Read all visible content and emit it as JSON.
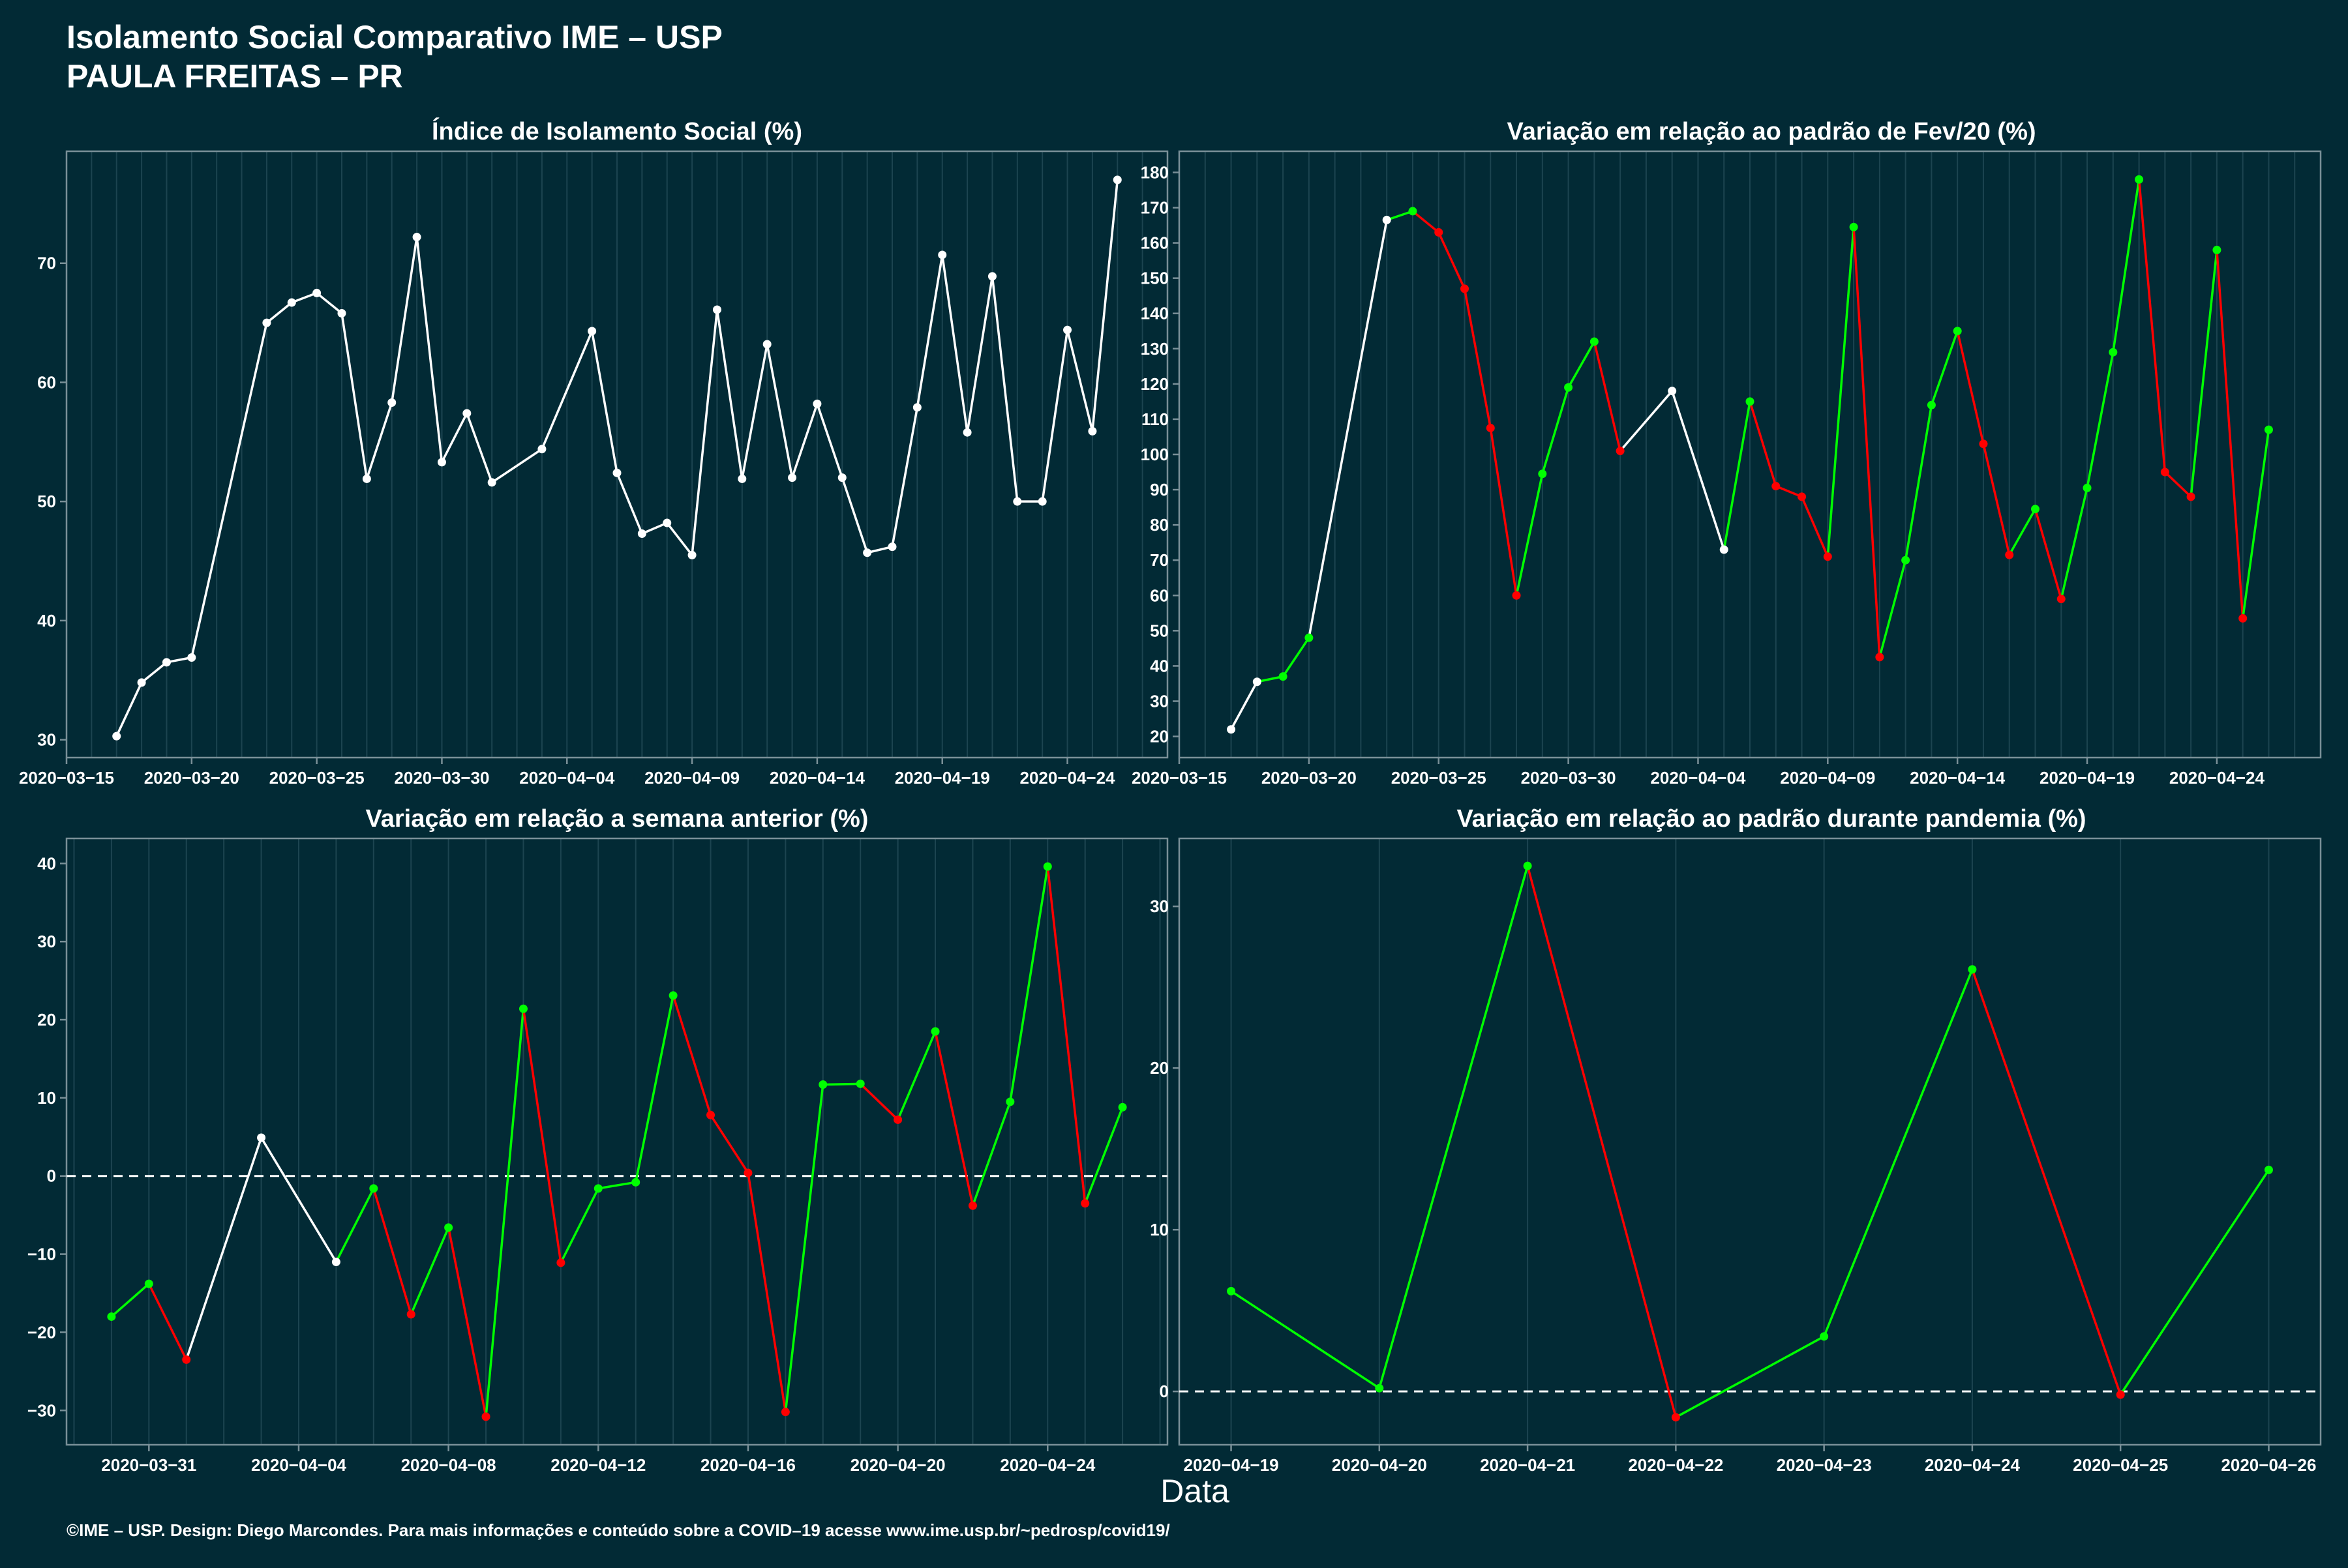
{
  "header": {
    "title_line1": "Isolamento Social Comparativo IME – USP",
    "title_line2": "PAULA FREITAS – PR"
  },
  "footer": {
    "xlabel": "Data",
    "credit": "©IME – USP. Design: Diego Marcondes. Para mais informações e conteúdo sobre a COVID–19 acesse www.ime.usp.br/~pedrosp/covid19/"
  },
  "colors": {
    "background": "#022a35",
    "panel_border": "#7a9098",
    "grid": "#1c4450",
    "text": "#ffffff",
    "up": "#00ff00",
    "down": "#ff0000",
    "neutral": "#ffffff"
  },
  "chart_data": [
    {
      "id": "p1",
      "type": "line",
      "title": "Índice de Isolamento Social (%)",
      "x": [
        "2020-03-17",
        "2020-03-18",
        "2020-03-19",
        "2020-03-20",
        "2020-03-23",
        "2020-03-24",
        "2020-03-25",
        "2020-03-26",
        "2020-03-27",
        "2020-03-28",
        "2020-03-29",
        "2020-03-30",
        "2020-03-31",
        "2020-04-01",
        "2020-04-03",
        "2020-04-05",
        "2020-04-06",
        "2020-04-07",
        "2020-04-08",
        "2020-04-09",
        "2020-04-10",
        "2020-04-11",
        "2020-04-12",
        "2020-04-13",
        "2020-04-14",
        "2020-04-15",
        "2020-04-16",
        "2020-04-17",
        "2020-04-18",
        "2020-04-19",
        "2020-04-20",
        "2020-04-21",
        "2020-04-22",
        "2020-04-23",
        "2020-04-24",
        "2020-04-25",
        "2020-04-26"
      ],
      "y": [
        30.3,
        34.8,
        36.5,
        36.9,
        65.0,
        66.7,
        67.5,
        65.8,
        51.9,
        58.3,
        72.2,
        53.3,
        57.4,
        51.6,
        54.4,
        64.3,
        52.4,
        47.3,
        48.2,
        45.5,
        66.1,
        51.9,
        63.2,
        52.0,
        58.2,
        52.0,
        45.7,
        46.2,
        57.9,
        70.7,
        55.8,
        68.9,
        50.0,
        50.0,
        64.4,
        55.9,
        77.0
      ],
      "segment_colors": [
        "neutral"
      ],
      "xticks": [
        "2020-03-15",
        "2020-03-20",
        "2020-03-25",
        "2020-03-30",
        "2020-04-04",
        "2020-04-09",
        "2020-04-14",
        "2020-04-19",
        "2020-04-24"
      ],
      "xlim": [
        "2020-03-15",
        "2020-04-28"
      ],
      "yticks": [
        30,
        40,
        50,
        60,
        70
      ],
      "ylim": [
        28.5,
        79.4
      ],
      "grid": true,
      "reference_line": null
    },
    {
      "id": "p2",
      "type": "line",
      "title": "Variação em relação ao padrão de Fev/20 (%)",
      "x": [
        "2020-03-17",
        "2020-03-18",
        "2020-03-19",
        "2020-03-20",
        "2020-03-23",
        "2020-03-24",
        "2020-03-25",
        "2020-03-26",
        "2020-03-27",
        "2020-03-28",
        "2020-03-29",
        "2020-03-30",
        "2020-03-31",
        "2020-04-01",
        "2020-04-03",
        "2020-04-05",
        "2020-04-06",
        "2020-04-07",
        "2020-04-08",
        "2020-04-09",
        "2020-04-10",
        "2020-04-11",
        "2020-04-12",
        "2020-04-13",
        "2020-04-14",
        "2020-04-15",
        "2020-04-16",
        "2020-04-17",
        "2020-04-18",
        "2020-04-19",
        "2020-04-20",
        "2020-04-21",
        "2020-04-22",
        "2020-04-23",
        "2020-04-24",
        "2020-04-25",
        "2020-04-26"
      ],
      "y": [
        22,
        35.5,
        37,
        48,
        166.5,
        169,
        163,
        147,
        107.5,
        60,
        94.5,
        119,
        132,
        101,
        118,
        73,
        115,
        91,
        88,
        71,
        164.5,
        42.5,
        70,
        114,
        135,
        103,
        71.5,
        84.5,
        59,
        90.5,
        129,
        178,
        95,
        88,
        158,
        53.5,
        107
      ],
      "segment_colors": [
        "neutral",
        "up",
        "up",
        "neutral",
        "up",
        "down",
        "down",
        "down",
        "down",
        "up",
        "up",
        "up",
        "down",
        "neutral",
        "neutral",
        "up",
        "down",
        "down",
        "down",
        "up",
        "down",
        "up",
        "up",
        "up",
        "down",
        "down",
        "up",
        "down",
        "up",
        "up",
        "up",
        "down",
        "down",
        "up",
        "down",
        "up"
      ],
      "xticks": [
        "2020-03-15",
        "2020-03-20",
        "2020-03-25",
        "2020-03-30",
        "2020-04-04",
        "2020-04-09",
        "2020-04-14",
        "2020-04-19",
        "2020-04-24"
      ],
      "xlim": [
        "2020-03-15",
        "2020-04-28"
      ],
      "yticks": [
        20,
        30,
        40,
        50,
        60,
        70,
        80,
        90,
        100,
        110,
        120,
        130,
        140,
        150,
        160,
        170,
        180
      ],
      "ylim": [
        14,
        186
      ],
      "grid": true,
      "reference_line": null
    },
    {
      "id": "p3",
      "type": "line",
      "title": "Variação em relação a semana anterior (%)",
      "x": [
        "2020-03-30",
        "2020-03-31",
        "2020-04-01",
        "2020-04-03",
        "2020-04-05",
        "2020-04-06",
        "2020-04-07",
        "2020-04-08",
        "2020-04-09",
        "2020-04-10",
        "2020-04-11",
        "2020-04-12",
        "2020-04-13",
        "2020-04-14",
        "2020-04-15",
        "2020-04-16",
        "2020-04-17",
        "2020-04-18",
        "2020-04-19",
        "2020-04-20",
        "2020-04-21",
        "2020-04-22",
        "2020-04-23",
        "2020-04-24",
        "2020-04-25",
        "2020-04-26"
      ],
      "y": [
        -18,
        -13.8,
        -23.5,
        4.9,
        -11,
        -1.6,
        -17.7,
        -6.6,
        -30.8,
        21.4,
        -11.1,
        -1.6,
        -0.8,
        23.1,
        7.8,
        0.4,
        -30.2,
        11.7,
        11.8,
        7.2,
        18.5,
        -3.8,
        9.5,
        39.6,
        -3.5,
        8.8
      ],
      "segment_colors": [
        "up",
        "down",
        "neutral",
        "neutral",
        "up",
        "down",
        "up",
        "down",
        "up",
        "down",
        "up",
        "up",
        "up",
        "down",
        "down",
        "down",
        "up",
        "up",
        "down",
        "up",
        "down",
        "up",
        "up",
        "down",
        "up"
      ],
      "xticks": [
        "2020-03-31",
        "2020-04-04",
        "2020-04-08",
        "2020-04-12",
        "2020-04-16",
        "2020-04-20",
        "2020-04-24"
      ],
      "xlim": [
        "2020-03-28.8",
        "2020-04-27.2"
      ],
      "yticks": [
        -30,
        -20,
        -10,
        0,
        10,
        20,
        30,
        40
      ],
      "ylim": [
        -34.4,
        43.2
      ],
      "grid": true,
      "reference_line": 0
    },
    {
      "id": "p4",
      "type": "line",
      "title": "Variação em relação ao padrão durante pandemia (%)",
      "x": [
        "2020-04-19",
        "2020-04-20",
        "2020-04-21",
        "2020-04-22",
        "2020-04-23",
        "2020-04-24",
        "2020-04-25",
        "2020-04-26"
      ],
      "y": [
        6.2,
        0.2,
        32.5,
        -1.6,
        3.4,
        26.1,
        -0.2,
        13.7
      ],
      "segment_colors": [
        "up",
        "up",
        "down",
        "up",
        "up",
        "down",
        "up"
      ],
      "xticks": [
        "2020-04-19",
        "2020-04-20",
        "2020-04-21",
        "2020-04-22",
        "2020-04-23",
        "2020-04-24",
        "2020-04-25",
        "2020-04-26"
      ],
      "xlim": [
        "2020-04-18.65",
        "2020-04-26.35"
      ],
      "yticks": [
        0,
        10,
        20,
        30
      ],
      "ylim": [
        -3.3,
        34.2
      ],
      "grid": true,
      "reference_line": 0
    }
  ]
}
